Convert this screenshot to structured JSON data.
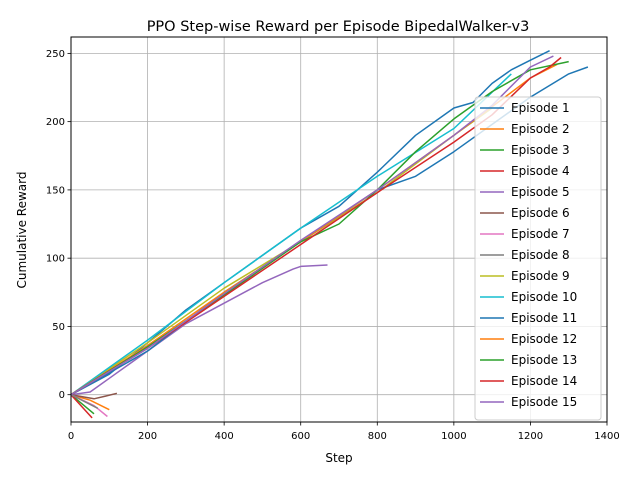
{
  "chart_data": {
    "type": "line",
    "title": "PPO Step-wise Reward per Episode BipedalWalker-v3",
    "xlabel": "Step",
    "ylabel": "Cumulative Reward",
    "xlim": [
      0,
      1400
    ],
    "ylim": [
      -20,
      262
    ],
    "xticks": [
      0,
      200,
      400,
      600,
      800,
      1000,
      1200,
      1400
    ],
    "yticks": [
      0,
      50,
      100,
      150,
      200,
      250
    ],
    "grid": true,
    "legend_position": "right",
    "series": [
      {
        "name": "Episode 1",
        "color": "#1f77b4",
        "x": [
          0,
          100,
          200,
          300,
          400,
          500,
          600,
          700,
          800,
          900,
          1000,
          1050,
          1100,
          1150,
          1200,
          1250
        ],
        "y": [
          0,
          15,
          38,
          62,
          82,
          102,
          122,
          138,
          163,
          190,
          210,
          214,
          228,
          238,
          245,
          252
        ]
      },
      {
        "name": "Episode 2",
        "color": "#ff7f0e",
        "x": [
          0,
          50,
          100
        ],
        "y": [
          0,
          -4,
          -11
        ]
      },
      {
        "name": "Episode 3",
        "color": "#2ca02c",
        "x": [
          0,
          60
        ],
        "y": [
          0,
          -14
        ]
      },
      {
        "name": "Episode 4",
        "color": "#d62728",
        "x": [
          0,
          55
        ],
        "y": [
          0,
          -17
        ]
      },
      {
        "name": "Episode 5",
        "color": "#9467bd",
        "x": [
          0,
          50,
          100,
          200,
          300,
          400,
          500,
          580,
          600,
          670
        ],
        "y": [
          0,
          2,
          12,
          32,
          52,
          67,
          82,
          92,
          94,
          95
        ]
      },
      {
        "name": "Episode 6",
        "color": "#8c564b",
        "x": [
          0,
          60,
          90,
          120
        ],
        "y": [
          0,
          -3,
          -1,
          1
        ]
      },
      {
        "name": "Episode 7",
        "color": "#e377c2",
        "x": [
          0,
          60,
          95
        ],
        "y": [
          0,
          -8,
          -16
        ]
      },
      {
        "name": "Episode 8",
        "color": "#7f7f7f",
        "x": [
          0,
          70
        ],
        "y": [
          0,
          -10
        ]
      },
      {
        "name": "Episode 9",
        "color": "#bcbd22",
        "x": [
          0,
          200,
          400,
          600,
          800,
          1000,
          1100
        ],
        "y": [
          0,
          38,
          78,
          112,
          148,
          190,
          210
        ]
      },
      {
        "name": "Episode 10",
        "color": "#17becf",
        "x": [
          0,
          200,
          400,
          600,
          800,
          1000,
          1150
        ],
        "y": [
          0,
          40,
          82,
          122,
          160,
          195,
          235
        ]
      },
      {
        "name": "Episode 11",
        "color": "#1f77b4",
        "x": [
          0,
          200,
          400,
          600,
          800,
          900,
          1000,
          1100,
          1200,
          1300,
          1350
        ],
        "y": [
          0,
          32,
          75,
          112,
          150,
          160,
          178,
          198,
          218,
          235,
          240
        ]
      },
      {
        "name": "Episode 12",
        "color": "#ff7f0e",
        "x": [
          0,
          200,
          400,
          600,
          800,
          1000,
          1200,
          1270
        ],
        "y": [
          0,
          36,
          75,
          112,
          150,
          190,
          232,
          242
        ]
      },
      {
        "name": "Episode 13",
        "color": "#2ca02c",
        "x": [
          0,
          200,
          400,
          600,
          700,
          800,
          900,
          1000,
          1100,
          1200,
          1300
        ],
        "y": [
          0,
          35,
          73,
          112,
          125,
          150,
          178,
          202,
          222,
          238,
          244
        ]
      },
      {
        "name": "Episode 14",
        "color": "#d62728",
        "x": [
          0,
          200,
          400,
          600,
          800,
          1000,
          1100,
          1200,
          1250,
          1280
        ],
        "y": [
          0,
          34,
          72,
          110,
          148,
          185,
          205,
          232,
          240,
          247
        ]
      },
      {
        "name": "Episode 15",
        "color": "#9467bd",
        "x": [
          0,
          200,
          400,
          600,
          800,
          1000,
          1100,
          1200,
          1260
        ],
        "y": [
          0,
          34,
          74,
          113,
          150,
          190,
          212,
          240,
          248
        ]
      }
    ]
  }
}
